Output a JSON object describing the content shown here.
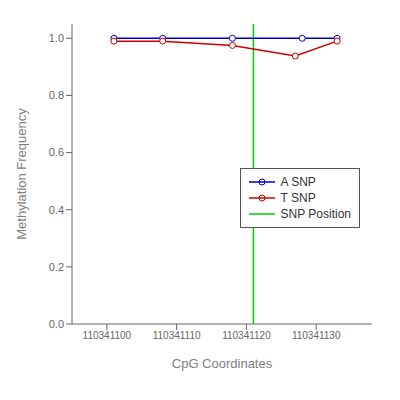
{
  "chart_data": {
    "type": "line",
    "xlabel": "CpG Coordinates",
    "ylabel": "Methylation Frequency",
    "series": [
      {
        "name": "A SNP",
        "color": "#0000cc",
        "marker": "o",
        "x": [
          110341101,
          110341108,
          110341118,
          110341128,
          110341133
        ],
        "values": [
          1.0,
          1.0,
          1.0,
          1.0,
          1.0
        ]
      },
      {
        "name": "T SNP",
        "color": "#cc0000",
        "marker": "o",
        "x": [
          110341101,
          110341108,
          110341118,
          110341127,
          110341133
        ],
        "values": [
          0.99,
          0.99,
          0.975,
          0.938,
          0.99
        ]
      },
      {
        "name": "SNP Position",
        "type": "vline",
        "color": "#00cc00",
        "x": [
          110341121
        ]
      }
    ],
    "xlim": [
      110341095,
      110341138
    ],
    "xticks": [
      110341100,
      110341110,
      110341120,
      110341130
    ],
    "ylim": [
      0.0,
      1.05
    ],
    "yticks": [
      {
        "value": 0,
        "label": "0.0"
      },
      0.2,
      0.4,
      0.6,
      0.8,
      {
        "value": 1,
        "label": "1.0"
      }
    ],
    "grid": false,
    "legend": "center right"
  }
}
